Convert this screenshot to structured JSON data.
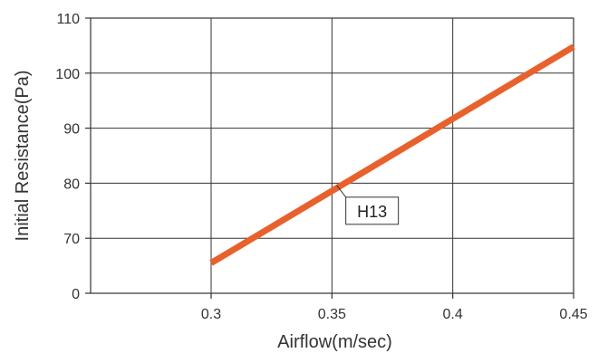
{
  "chart_data": {
    "type": "line",
    "title": "",
    "xlabel": "Airflow(m/sec)",
    "ylabel": "Initial Resistance(Pa)",
    "x_ticks": [
      "0.3",
      "0.35",
      "0.4",
      "0.45"
    ],
    "y_ticks": [
      "0",
      "70",
      "80",
      "90",
      "100",
      "110"
    ],
    "grid": true,
    "series": [
      {
        "name": "H13",
        "color": "#E8612C",
        "x": [
          0.3,
          0.45
        ],
        "y": [
          65.5,
          104.8
        ]
      }
    ],
    "annotations": [
      {
        "text": "H13",
        "x": 0.352,
        "y": 79.6
      }
    ]
  }
}
